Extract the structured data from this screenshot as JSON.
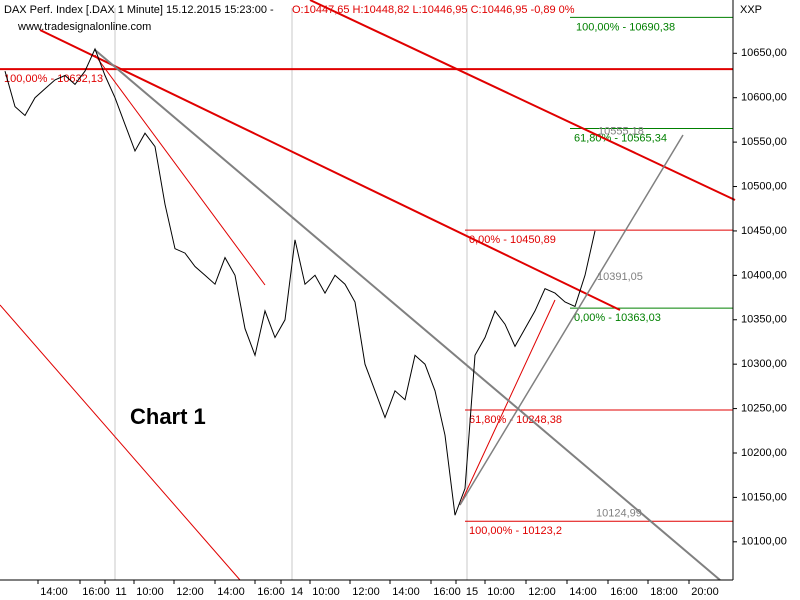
{
  "header": {
    "title": "DAX Perf. Index [.DAX  1 Minute] 15.12.2015 15:23:00 -",
    "quote": "O:10447,65 H:10448,82 L:10446,95 C:10446,95 -0,89 0%",
    "source": "www.tradesignalonline.com",
    "symbol": "XXP"
  },
  "chart_data": {
    "type": "line",
    "label": "Chart 1",
    "series": [
      {
        "name": "DAX Perf. Index",
        "color": "#000000",
        "values": [
          10630,
          10590,
          10580,
          10600,
          10610,
          10620,
          10625,
          10615,
          10630,
          10655,
          10625,
          10600,
          10570,
          10540,
          10560,
          10545,
          10480,
          10430,
          10425,
          10410,
          10400,
          10390,
          10420,
          10400,
          10340,
          10310,
          10360,
          10330,
          10350,
          10440,
          10390,
          10400,
          10380,
          10400,
          10390,
          10370,
          10300,
          10270,
          10240,
          10270,
          10260,
          10310,
          10300,
          10270,
          10220,
          10130,
          10160,
          10310,
          10330,
          10360,
          10345,
          10320,
          10340,
          10360,
          10385,
          10380,
          10370,
          10365,
          10400,
          10450
        ]
      }
    ],
    "ylim": [
      10057,
      10701
    ],
    "yticks": [
      {
        "value": 10100,
        "label": "10100,00"
      },
      {
        "value": 10150,
        "label": "10150,00"
      },
      {
        "value": 10200,
        "label": "10200,00"
      },
      {
        "value": 10250,
        "label": "10250,00"
      },
      {
        "value": 10300,
        "label": "10300,00"
      },
      {
        "value": 10350,
        "label": "10350,00"
      },
      {
        "value": 10400,
        "label": "10400,00"
      },
      {
        "value": 10450,
        "label": "10450,00"
      },
      {
        "value": 10500,
        "label": "10500,00"
      },
      {
        "value": 10550,
        "label": "10550,00"
      },
      {
        "value": 10600,
        "label": "10600,00"
      },
      {
        "value": 10650,
        "label": "10650,00"
      }
    ],
    "xticks": [
      "14:00",
      "16:00",
      "11",
      "10:00",
      "12:00",
      "14:00",
      "16:00",
      "14",
      "10:00",
      "12:00",
      "14:00",
      "16:00",
      "15",
      "10:00",
      "12:00",
      "14:00",
      "16:00",
      "18:00",
      "20:00"
    ],
    "levels": [
      {
        "label": "100,00% - 10690,38",
        "value": 10690.38,
        "color": "#008000"
      },
      {
        "label": "61,80% - 10565,34",
        "value": 10565.34,
        "color": "#008000"
      },
      {
        "label": "0,00% - 10363,03",
        "value": 10363.03,
        "color": "#008000"
      },
      {
        "label": "100,00% - 10632,13",
        "value": 10632.13,
        "color": "#e00000"
      },
      {
        "label": "0,00% - 10450,89",
        "value": 10450.89,
        "color": "#e00000"
      },
      {
        "label": "61,80% - 10248,38",
        "value": 10248.38,
        "color": "#e00000"
      },
      {
        "label": "100,00% - 10123,2",
        "value": 10123.2,
        "color": "#e00000"
      }
    ],
    "annotations": [
      {
        "label": "10555,18",
        "value": 10555.18
      },
      {
        "label": "10391,05",
        "value": 10391.05
      },
      {
        "label": "10124,99",
        "value": 10124.99
      }
    ]
  }
}
